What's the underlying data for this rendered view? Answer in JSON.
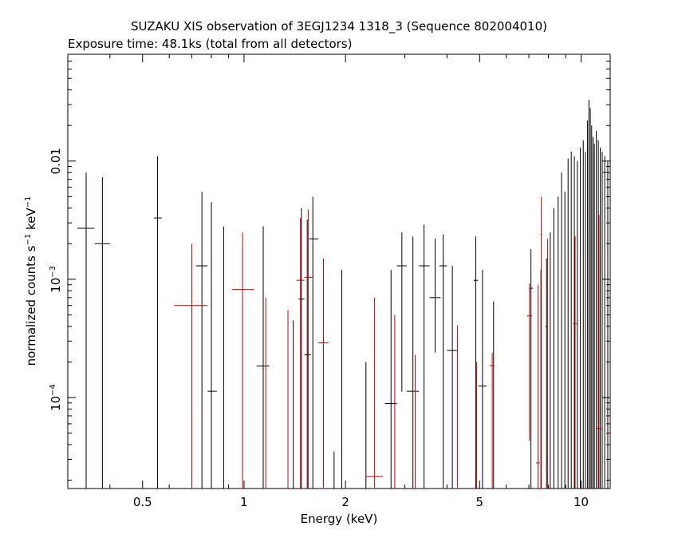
{
  "chart_data": {
    "type": "scatter",
    "title": "SUZAKU XIS observation of 3EGJ1234 1318_3 (Sequence 802004010)",
    "subtitle": "Exposure time: 48.1ks (total from all detectors)",
    "xlabel": "Energy (keV)",
    "ylabel": {
      "base": "normalized counts s",
      "sup1": "−1",
      "mid": " keV",
      "sup2": "−1"
    },
    "x_scale": "log",
    "y_scale": "log",
    "xlim": [
      0.3,
      12.2
    ],
    "ylim": [
      1.7e-05,
      0.08
    ],
    "x_ticks": [
      {
        "value": 0.5,
        "label": "0.5"
      },
      {
        "value": 1,
        "label": "1"
      },
      {
        "value": 2,
        "label": "2"
      },
      {
        "value": 5,
        "label": "5"
      },
      {
        "value": 10,
        "label": "10"
      }
    ],
    "y_ticks": [
      {
        "value": 0.0001,
        "base": "10",
        "exp": "−4"
      },
      {
        "value": 0.001,
        "base": "10",
        "exp": "−3"
      },
      {
        "value": 0.01,
        "base": "0.01",
        "exp": ""
      }
    ],
    "series": [
      {
        "color": "#000000",
        "points": [
          {
            "x": 0.34,
            "y": 0.0027,
            "xlo": 0.32,
            "xhi": 0.36,
            "ylo": 1.7e-05,
            "yhi": 0.008
          },
          {
            "x": 0.38,
            "y": 0.002,
            "xlo": 0.36,
            "xhi": 0.4,
            "ylo": 1.7e-05,
            "yhi": 0.0073
          },
          {
            "x": 0.554,
            "y": 0.0033,
            "xlo": 0.54,
            "xhi": 0.57,
            "ylo": 1.7e-05,
            "yhi": 0.011
          },
          {
            "x": 0.7,
            "y": 6e-05,
            "xlo": 0.7,
            "xhi": 0.7,
            "ylo": 1.7e-05,
            "yhi": 7e-05
          },
          {
            "x": 0.75,
            "y": 0.0013,
            "xlo": 0.72,
            "xhi": 0.78,
            "ylo": 1.7e-05,
            "yhi": 0.0055
          },
          {
            "x": 0.8,
            "y": 0.000113,
            "xlo": 0.78,
            "xhi": 0.83,
            "ylo": 1.7e-05,
            "yhi": 0.0045
          },
          {
            "x": 0.87,
            "y": 0.0001,
            "xlo": 0.87,
            "xhi": 0.87,
            "ylo": 1.7e-05,
            "yhi": 0.0028
          },
          {
            "x": 1.14,
            "y": 0.000185,
            "xlo": 1.09,
            "xhi": 1.19,
            "ylo": 1.7e-05,
            "yhi": 0.0028
          },
          {
            "x": 1.4,
            "y": 0.0001,
            "xlo": 1.4,
            "xhi": 1.4,
            "ylo": 1.7e-05,
            "yhi": 0.00045
          },
          {
            "x": 1.48,
            "y": 0.00068,
            "xlo": 1.45,
            "xhi": 1.51,
            "ylo": 1.7e-05,
            "yhi": 0.004
          },
          {
            "x": 1.54,
            "y": 0.00023,
            "xlo": 1.51,
            "xhi": 1.58,
            "ylo": 1.7e-05,
            "yhi": 0.0032
          },
          {
            "x": 1.6,
            "y": 0.0022,
            "xlo": 1.56,
            "xhi": 1.66,
            "ylo": 1.7e-05,
            "yhi": 0.005
          },
          {
            "x": 1.85,
            "y": 2.5e-05,
            "xlo": 1.85,
            "xhi": 1.85,
            "ylo": 1.7e-05,
            "yhi": 3.5e-05
          },
          {
            "x": 1.95,
            "y": 0.0001,
            "xlo": 1.95,
            "xhi": 1.95,
            "ylo": 1.7e-05,
            "yhi": 0.0012
          },
          {
            "x": 2.3,
            "y": 5e-05,
            "xlo": 2.3,
            "xhi": 2.3,
            "ylo": 1.7e-05,
            "yhi": 0.0002
          },
          {
            "x": 2.73,
            "y": 8.9e-05,
            "xlo": 2.62,
            "xhi": 2.84,
            "ylo": 1.7e-05,
            "yhi": 0.0012
          },
          {
            "x": 2.94,
            "y": 0.0013,
            "xlo": 2.84,
            "xhi": 3.04,
            "ylo": 0.000112,
            "yhi": 0.0025
          },
          {
            "x": 3.17,
            "y": 0.000113,
            "xlo": 3.04,
            "xhi": 3.3,
            "ylo": 1.7e-05,
            "yhi": 0.0023
          },
          {
            "x": 3.42,
            "y": 0.0013,
            "xlo": 3.3,
            "xhi": 3.55,
            "ylo": 1.7e-05,
            "yhi": 0.0029
          },
          {
            "x": 3.69,
            "y": 0.0007,
            "xlo": 3.55,
            "xhi": 3.83,
            "ylo": 0.00024,
            "yhi": 0.0022
          },
          {
            "x": 3.9,
            "y": 0.0013,
            "xlo": 3.8,
            "xhi": 4.0,
            "ylo": 1.7e-05,
            "yhi": 0.0024
          },
          {
            "x": 4.15,
            "y": 0.00025,
            "xlo": 4.0,
            "xhi": 4.3,
            "ylo": 1.7e-05,
            "yhi": 0.0013
          },
          {
            "x": 4.87,
            "y": 0.00098,
            "xlo": 4.8,
            "xhi": 4.95,
            "ylo": 1.7e-05,
            "yhi": 0.0023
          },
          {
            "x": 5.1,
            "y": 0.000125,
            "xlo": 4.95,
            "xhi": 5.25,
            "ylo": 1.7e-05,
            "yhi": 0.0012
          },
          {
            "x": 5.5,
            "y": 0.0001,
            "xlo": 5.5,
            "xhi": 5.5,
            "ylo": 1.7e-05,
            "yhi": 0.00065
          },
          {
            "x": 7.1,
            "y": 0.00084,
            "xlo": 7.02,
            "xhi": 7.2,
            "ylo": 1.7e-05,
            "yhi": 0.0018
          },
          {
            "x": 7.6,
            "y": 0.0003,
            "xlo": 7.6,
            "xhi": 7.6,
            "ylo": 1.7e-05,
            "yhi": 0.0012
          },
          {
            "x": 7.9,
            "y": 0.0004,
            "xlo": 7.85,
            "xhi": 7.95,
            "ylo": 1.7e-05,
            "yhi": 0.0015
          },
          {
            "x": 8.1,
            "y": 0.0012,
            "xlo": 8.1,
            "xhi": 8.1,
            "ylo": 1.7e-05,
            "yhi": 0.0025
          },
          {
            "x": 8.3,
            "y": 0.0016,
            "xlo": 8.3,
            "xhi": 8.3,
            "ylo": 1.7e-05,
            "yhi": 0.004
          },
          {
            "x": 8.55,
            "y": 0.002,
            "xlo": 8.55,
            "xhi": 8.55,
            "ylo": 1.7e-05,
            "yhi": 0.005
          },
          {
            "x": 8.75,
            "y": 0.003,
            "xlo": 8.75,
            "xhi": 8.75,
            "ylo": 1.7e-05,
            "yhi": 0.008
          },
          {
            "x": 8.95,
            "y": 0.0025,
            "xlo": 8.95,
            "xhi": 8.95,
            "ylo": 1.7e-05,
            "yhi": 0.0055
          },
          {
            "x": 9.15,
            "y": 0.004,
            "xlo": 9.15,
            "xhi": 9.15,
            "ylo": 1.7e-05,
            "yhi": 0.0105
          },
          {
            "x": 9.35,
            "y": 0.005,
            "xlo": 9.35,
            "xhi": 9.35,
            "ylo": 1.7e-05,
            "yhi": 0.012
          },
          {
            "x": 9.55,
            "y": 0.0035,
            "xlo": 9.55,
            "xhi": 9.55,
            "ylo": 1.7e-05,
            "yhi": 0.011
          },
          {
            "x": 9.75,
            "y": 0.004,
            "xlo": 9.75,
            "xhi": 9.75,
            "ylo": 1.7e-05,
            "yhi": 0.01
          },
          {
            "x": 9.95,
            "y": 0.005,
            "xlo": 9.95,
            "xhi": 9.95,
            "ylo": 1.7e-05,
            "yhi": 0.013
          },
          {
            "x": 10.15,
            "y": 0.006,
            "xlo": 10.15,
            "xhi": 10.15,
            "ylo": 1.7e-05,
            "yhi": 0.015
          },
          {
            "x": 10.3,
            "y": 0.005,
            "xlo": 10.3,
            "xhi": 10.3,
            "ylo": 1.7e-05,
            "yhi": 0.012
          },
          {
            "x": 10.45,
            "y": 0.008,
            "xlo": 10.45,
            "xhi": 10.45,
            "ylo": 1.7e-05,
            "yhi": 0.022
          },
          {
            "x": 10.55,
            "y": 0.01,
            "xlo": 10.55,
            "xhi": 10.55,
            "ylo": 1.7e-05,
            "yhi": 0.033
          },
          {
            "x": 10.65,
            "y": 0.012,
            "xlo": 10.65,
            "xhi": 10.65,
            "ylo": 1.7e-05,
            "yhi": 0.028
          },
          {
            "x": 10.75,
            "y": 0.009,
            "xlo": 10.75,
            "xhi": 10.75,
            "ylo": 1.7e-05,
            "yhi": 0.02
          },
          {
            "x": 10.85,
            "y": 0.007,
            "xlo": 10.85,
            "xhi": 10.85,
            "ylo": 1.7e-05,
            "yhi": 0.016
          },
          {
            "x": 10.95,
            "y": 0.006,
            "xlo": 10.95,
            "xhi": 10.95,
            "ylo": 1.7e-05,
            "yhi": 0.014
          },
          {
            "x": 11.1,
            "y": 0.008,
            "xlo": 11.1,
            "xhi": 11.1,
            "ylo": 1.7e-05,
            "yhi": 0.018
          },
          {
            "x": 11.25,
            "y": 0.006,
            "xlo": 11.25,
            "xhi": 11.25,
            "ylo": 1.7e-05,
            "yhi": 0.015
          },
          {
            "x": 11.4,
            "y": 0.005,
            "xlo": 11.4,
            "xhi": 11.4,
            "ylo": 1.7e-05,
            "yhi": 0.013
          },
          {
            "x": 11.55,
            "y": 0.007,
            "xlo": 11.55,
            "xhi": 11.55,
            "ylo": 1.7e-05,
            "yhi": 0.012
          },
          {
            "x": 11.75,
            "y": 0.008,
            "xlo": 11.6,
            "xhi": 11.9,
            "ylo": 1.7e-05,
            "yhi": 0.011
          },
          {
            "x": 12.0,
            "y": 0.009,
            "xlo": 11.9,
            "xhi": 12.1,
            "ylo": 1.7e-05,
            "yhi": 0.01
          }
        ]
      },
      {
        "color": "#cc0000",
        "points": [
          {
            "x": 0.7,
            "y": 0.0006,
            "xlo": 0.62,
            "xhi": 0.78,
            "ylo": 1.7e-05,
            "yhi": 0.002
          },
          {
            "x": 0.99,
            "y": 0.00082,
            "xlo": 0.92,
            "xhi": 1.07,
            "ylo": 1.7e-05,
            "yhi": 0.0025
          },
          {
            "x": 1.16,
            "y": 0.0001,
            "xlo": 1.16,
            "xhi": 1.16,
            "ylo": 1.7e-05,
            "yhi": 0.0007
          },
          {
            "x": 1.35,
            "y": 0.0001,
            "xlo": 1.35,
            "xhi": 1.35,
            "ylo": 1.7e-05,
            "yhi": 0.00055
          },
          {
            "x": 1.47,
            "y": 0.00098,
            "xlo": 1.43,
            "xhi": 1.51,
            "ylo": 1.7e-05,
            "yhi": 0.0033
          },
          {
            "x": 1.55,
            "y": 0.00104,
            "xlo": 1.51,
            "xhi": 1.6,
            "ylo": 1.7e-05,
            "yhi": 0.0039
          },
          {
            "x": 1.72,
            "y": 0.00029,
            "xlo": 1.66,
            "xhi": 1.78,
            "ylo": 1.7e-05,
            "yhi": 0.0015
          },
          {
            "x": 2.44,
            "y": 2.15e-05,
            "xlo": 2.3,
            "xhi": 2.58,
            "ylo": 1.7e-05,
            "yhi": 0.0007
          },
          {
            "x": 2.8,
            "y": 0.0001,
            "xlo": 2.8,
            "xhi": 2.8,
            "ylo": 1.7e-05,
            "yhi": 0.0005
          },
          {
            "x": 3.22,
            "y": 0.0001,
            "xlo": 3.22,
            "xhi": 3.22,
            "ylo": 1.7e-05,
            "yhi": 0.00023
          },
          {
            "x": 4.3,
            "y": 0.0001,
            "xlo": 4.3,
            "xhi": 4.3,
            "ylo": 1.7e-05,
            "yhi": 0.00041
          },
          {
            "x": 4.9,
            "y": 0.0001,
            "xlo": 4.9,
            "xhi": 4.9,
            "ylo": 1.7e-05,
            "yhi": 0.0002
          },
          {
            "x": 5.45,
            "y": 0.000186,
            "xlo": 5.35,
            "xhi": 5.55,
            "ylo": 1.7e-05,
            "yhi": 0.00024
          },
          {
            "x": 7.03,
            "y": 0.00049,
            "xlo": 6.9,
            "xhi": 7.16,
            "ylo": 4.3e-05,
            "yhi": 0.00092
          },
          {
            "x": 7.45,
            "y": 2.8e-05,
            "xlo": 7.35,
            "xhi": 7.55,
            "ylo": 1.7e-05,
            "yhi": 0.0009
          },
          {
            "x": 7.62,
            "y": 0.0024,
            "xlo": 7.58,
            "xhi": 7.66,
            "ylo": 1.7e-05,
            "yhi": 0.005
          },
          {
            "x": 7.95,
            "y": 0.0001,
            "xlo": 7.95,
            "xhi": 7.95,
            "ylo": 1.7e-05,
            "yhi": 0.0022
          },
          {
            "x": 9.6,
            "y": 0.00042,
            "xlo": 9.45,
            "xhi": 9.75,
            "ylo": 1.7e-05,
            "yhi": 0.0023
          },
          {
            "x": 11.3,
            "y": 5.5e-05,
            "xlo": 11.1,
            "xhi": 11.5,
            "ylo": 1.7e-05,
            "yhi": 0.0035
          }
        ]
      }
    ]
  }
}
